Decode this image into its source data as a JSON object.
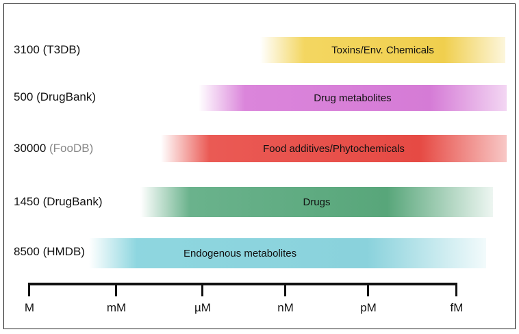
{
  "rows": [
    {
      "count": "3100",
      "db": "(T3DB)",
      "band": "Toxins/Env. Chemicals",
      "color": "#f0cf4e"
    },
    {
      "count": "500",
      "db": "(DrugBank)",
      "band": "Drug metabolites",
      "color": "#d57bd6"
    },
    {
      "count": "30000",
      "db": "(FooDB)",
      "band": "Food additives/Phytochemicals",
      "color": "#e64a44"
    },
    {
      "count": "1450",
      "db": "(DrugBank)",
      "band": "Drugs",
      "color": "#58a67a"
    },
    {
      "count": "8500",
      "db": "(HMDB)",
      "band": "Endogenous metabolites",
      "color": "#8ad2dc"
    }
  ],
  "axis": {
    "ticks": [
      "M",
      "mM",
      "µM",
      "nM",
      "pM",
      "fM"
    ]
  }
}
